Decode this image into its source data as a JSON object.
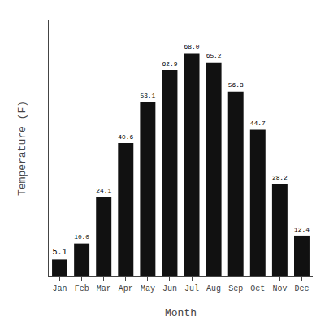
{
  "chart_data": {
    "type": "bar",
    "categories": [
      "Jan",
      "Feb",
      "Mar",
      "Apr",
      "May",
      "Jun",
      "Jul",
      "Aug",
      "Sep",
      "Oct",
      "Nov",
      "Dec"
    ],
    "values": [
      5.1,
      10.0,
      24.1,
      40.6,
      53.1,
      62.9,
      68.0,
      65.2,
      56.3,
      44.7,
      28.2,
      12.4
    ],
    "value_labels": [
      "5.1",
      "10.0",
      "24.1",
      "40.6",
      "53.1",
      "62.9",
      "68.0",
      "65.2",
      "56.3",
      "44.7",
      "28.2",
      "12.4"
    ],
    "color": "#111111",
    "xlabel": "Month",
    "ylabel": "Temperature (F)",
    "ylim": [
      0,
      78
    ],
    "data_labels": true,
    "tick_labels": "x",
    "grid": false
  }
}
